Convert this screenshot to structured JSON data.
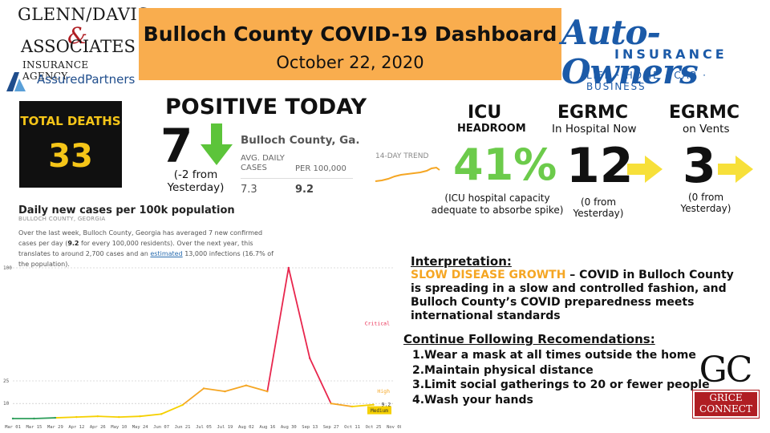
{
  "sponsor_left": {
    "line1": "GLENN/DAVIS",
    "ampersand": "&",
    "line2": "ASSOCIATES",
    "line3": "INSURANCE AGENCY",
    "line4": "AssuredPartners"
  },
  "header": {
    "title": "Bulloch County COVID-19 Dashboard",
    "date": "October 22, 2020"
  },
  "sponsor_right": {
    "name": "Auto-Owners",
    "insurance": "INSURANCE",
    "tagline": "LIFE · HOME · CAR · BUSINESS"
  },
  "total_deaths": {
    "label": "TOTAL DEATHS",
    "value": "33"
  },
  "positive_today": {
    "heading": "POSITIVE TODAY",
    "value": "7",
    "change": "(-2 from Yesterday)"
  },
  "county_widget": {
    "title": "Bulloch County, Ga.",
    "col1_label": "AVG. DAILY CASES",
    "col2_label": "PER 100,000",
    "col1_value": "7.3",
    "col2_value": "9.2",
    "trend_label": "14-DAY TREND"
  },
  "icu": {
    "heading": "ICU",
    "subheading": "HEADROOM",
    "value": "41%",
    "note": "(ICU hospital capacity adequate to absorbe spike)"
  },
  "egrmc_hospital": {
    "heading": "EGRMC",
    "subheading": "In Hospital Now",
    "value": "12",
    "note": "(0 from Yesterday)"
  },
  "egrmc_vents": {
    "heading": "EGRMC",
    "subheading": "on Vents",
    "value": "3",
    "note": "(0 from Yesterday)"
  },
  "chart_section": {
    "title": "Daily new cases per 100k population",
    "subtitle": "BULLOCH COUNTY, GEORGIA",
    "desc_part1": "Over the last week, Bulloch County, Georgia has averaged 7 new confirmed cases per day (",
    "desc_bold": "9.2",
    "desc_part2": " for every 100,000 residents). Over the next year, this translates to around 2,700 cases and an ",
    "desc_link": "estimated",
    "desc_part3": " 13,000 infections (16.7% of the population)."
  },
  "chart_data": {
    "type": "line",
    "x": [
      "Mar 01",
      "Mar 15",
      "Mar 29",
      "Apr 12",
      "Apr 26",
      "May 10",
      "May 24",
      "Jun 07",
      "Jun 21",
      "Jul 05",
      "Jul 19",
      "Aug 02",
      "Aug 16",
      "Aug 30",
      "Sep 13",
      "Sep 27",
      "Oct 11",
      "Oct 25",
      "Nov 08"
    ],
    "y": [
      0,
      0,
      0.5,
      1,
      1.5,
      1,
      1.5,
      3,
      9,
      20,
      18,
      22,
      18,
      100,
      40,
      10,
      8,
      9.2,
      null
    ],
    "ytick_labels": [
      "10",
      "25",
      "100"
    ],
    "ylim": [
      0,
      100
    ],
    "threshold_labels": [
      "Critical",
      "High",
      "Medium"
    ],
    "current_value_label": "9.2",
    "colors": {
      "critical": "#e8264d",
      "high": "#f5a623",
      "medium": "#f5d000",
      "low": "#2e9e5b"
    }
  },
  "interpretation": {
    "heading": "Interpretation:",
    "highlight": "SLOW DISEASE GROWTH",
    "body": " – COVID in Bulloch County is spreading in a slow and controlled fashion, and Bulloch County’s COVID preparedness meets international standards"
  },
  "recommendations": {
    "heading": "Continue Following Recomendations:",
    "items": [
      "1.Wear a mask at all times outside the home",
      "2.Maintain physical distance",
      "3.Limit social gatherings to 20 or fewer people",
      "4.Wash your hands"
    ]
  },
  "grice_logo": {
    "letters": "GC",
    "line1": "GRICE",
    "line2": "CONNECT"
  }
}
